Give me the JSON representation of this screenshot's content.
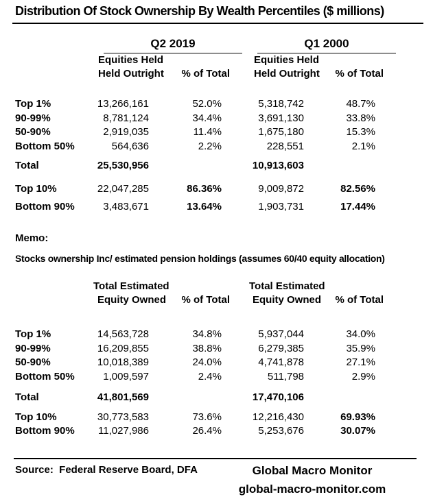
{
  "title": "Distribution Of Stock Ownership By Wealth Percentiles ($ millions)",
  "periods": {
    "q2": "Q2 2019",
    "q1": "Q1 2000"
  },
  "table1": {
    "subheader_line1": "Equities Held",
    "subheader_line2": "Held Outright",
    "pct_header": "% of Total",
    "rows": [
      {
        "label": "Top 1%",
        "q2_value": "13,266,161",
        "q2_pct": "52.0%",
        "q1_value": "5,318,742",
        "q1_pct": "48.7%"
      },
      {
        "label": "90-99%",
        "q2_value": "8,781,124",
        "q2_pct": "34.4%",
        "q1_value": "3,691,130",
        "q1_pct": "33.8%"
      },
      {
        "label": "50-90%",
        "q2_value": "2,919,035",
        "q2_pct": "11.4%",
        "q1_value": "1,675,180",
        "q1_pct": "15.3%"
      },
      {
        "label": "Bottom 50%",
        "q2_value": "564,636",
        "q2_pct": "2.2%",
        "q1_value": "228,551",
        "q1_pct": "2.1%"
      }
    ],
    "total": {
      "label": "Total",
      "q2_value": "25,530,956",
      "q1_value": "10,913,603"
    },
    "summary": [
      {
        "label": "Top 10%",
        "q2_value": "22,047,285",
        "q2_pct": "86.36%",
        "q1_value": "9,009,872",
        "q1_pct": "82.56%"
      },
      {
        "label": "Bottom 90%",
        "q2_value": "3,483,671",
        "q2_pct": "13.64%",
        "q1_value": "1,903,731",
        "q1_pct": "17.44%"
      }
    ]
  },
  "memo": {
    "label": "Memo:",
    "text": "Stocks ownership Inc/ estimated pension holdings (assumes 60/40 equity allocation)"
  },
  "table2": {
    "subheader_line1": "Total Estimated",
    "subheader_line2": "Equity Owned",
    "pct_header": "% of Total",
    "rows": [
      {
        "label": "Top 1%",
        "q2_value": "14,563,728",
        "q2_pct": "34.8%",
        "q1_value": "5,937,044",
        "q1_pct": "34.0%"
      },
      {
        "label": "90-99%",
        "q2_value": "16,209,855",
        "q2_pct": "38.8%",
        "q1_value": "6,279,385",
        "q1_pct": "35.9%"
      },
      {
        "label": "50-90%",
        "q2_value": "10,018,389",
        "q2_pct": "24.0%",
        "q1_value": "4,741,878",
        "q1_pct": "27.1%"
      },
      {
        "label": "Bottom 50%",
        "q2_value": "1,009,597",
        "q2_pct": "2.4%",
        "q1_value": "511,798",
        "q1_pct": "2.9%"
      }
    ],
    "total": {
      "label": "Total",
      "q2_value": "41,801,569",
      "q1_value": "17,470,106"
    },
    "summary": [
      {
        "label": "Top 10%",
        "q2_value": "30,773,583",
        "q2_pct": "73.6%",
        "q1_value": "12,216,430",
        "q1_pct": "69.93%"
      },
      {
        "label": "Bottom 90%",
        "q2_value": "11,027,986",
        "q2_pct": "26.4%",
        "q1_value": "5,253,676",
        "q1_pct": "30.07%"
      }
    ]
  },
  "footer": {
    "source": "Source:  Federal Reserve Board, DFA",
    "brand": "Global Macro Monitor",
    "url": "global-macro-monitor.com"
  }
}
